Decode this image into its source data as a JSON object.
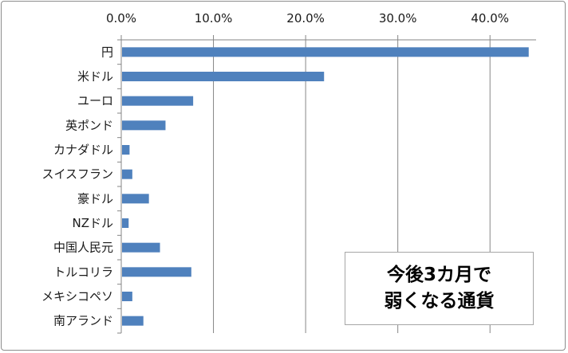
{
  "chart_data": {
    "type": "bar",
    "orientation": "horizontal",
    "categories": [
      "円",
      "米ドル",
      "ユーロ",
      "英ポンド",
      "カナダドル",
      "スイスフラン",
      "豪ドル",
      "NZドル",
      "中国人民元",
      "トルコリラ",
      "メキシコペソ",
      "南アランド"
    ],
    "values": [
      44.2,
      22.0,
      7.8,
      4.8,
      0.9,
      1.2,
      3.0,
      0.8,
      4.2,
      7.6,
      1.2,
      2.4
    ],
    "xlim": [
      0,
      45
    ],
    "xticks": [
      "0.0%",
      "10.0%",
      "20.0%",
      "30.0%",
      "40.0%"
    ],
    "tick_values": [
      0,
      10,
      20,
      30,
      40
    ],
    "axis_position": "top",
    "grid": true,
    "bar_color": "#4f81bd",
    "grid_color": "#868686",
    "annotation": "今後3カ月で\n弱くなる通貨"
  }
}
